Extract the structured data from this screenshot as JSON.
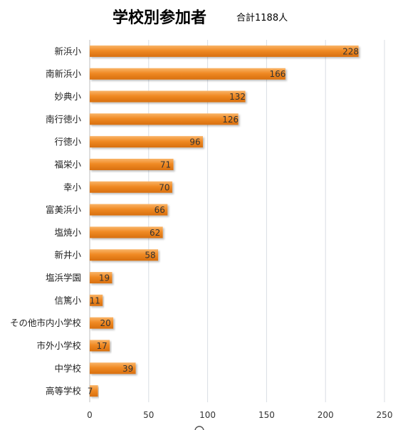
{
  "chart_data": {
    "type": "bar",
    "orientation": "horizontal",
    "title": "学校別参加者",
    "subtitle": "合計1188人",
    "categories": [
      "新浜小",
      "南新浜小",
      "妙典小",
      "南行徳小",
      "行徳小",
      "福栄小",
      "幸小",
      "富美浜小",
      "塩焼小",
      "新井小",
      "塩浜学園",
      "信篤小",
      "その他市内小学校",
      "市外小学校",
      "中学校",
      "高等学校"
    ],
    "values": [
      228,
      166,
      132,
      126,
      96,
      71,
      70,
      66,
      62,
      58,
      19,
      11,
      20,
      17,
      39,
      7
    ],
    "xlim": [
      0,
      250
    ],
    "xticks": [
      0,
      50,
      100,
      150,
      200,
      250
    ],
    "grid": true,
    "bar_color": "#f08a24"
  }
}
